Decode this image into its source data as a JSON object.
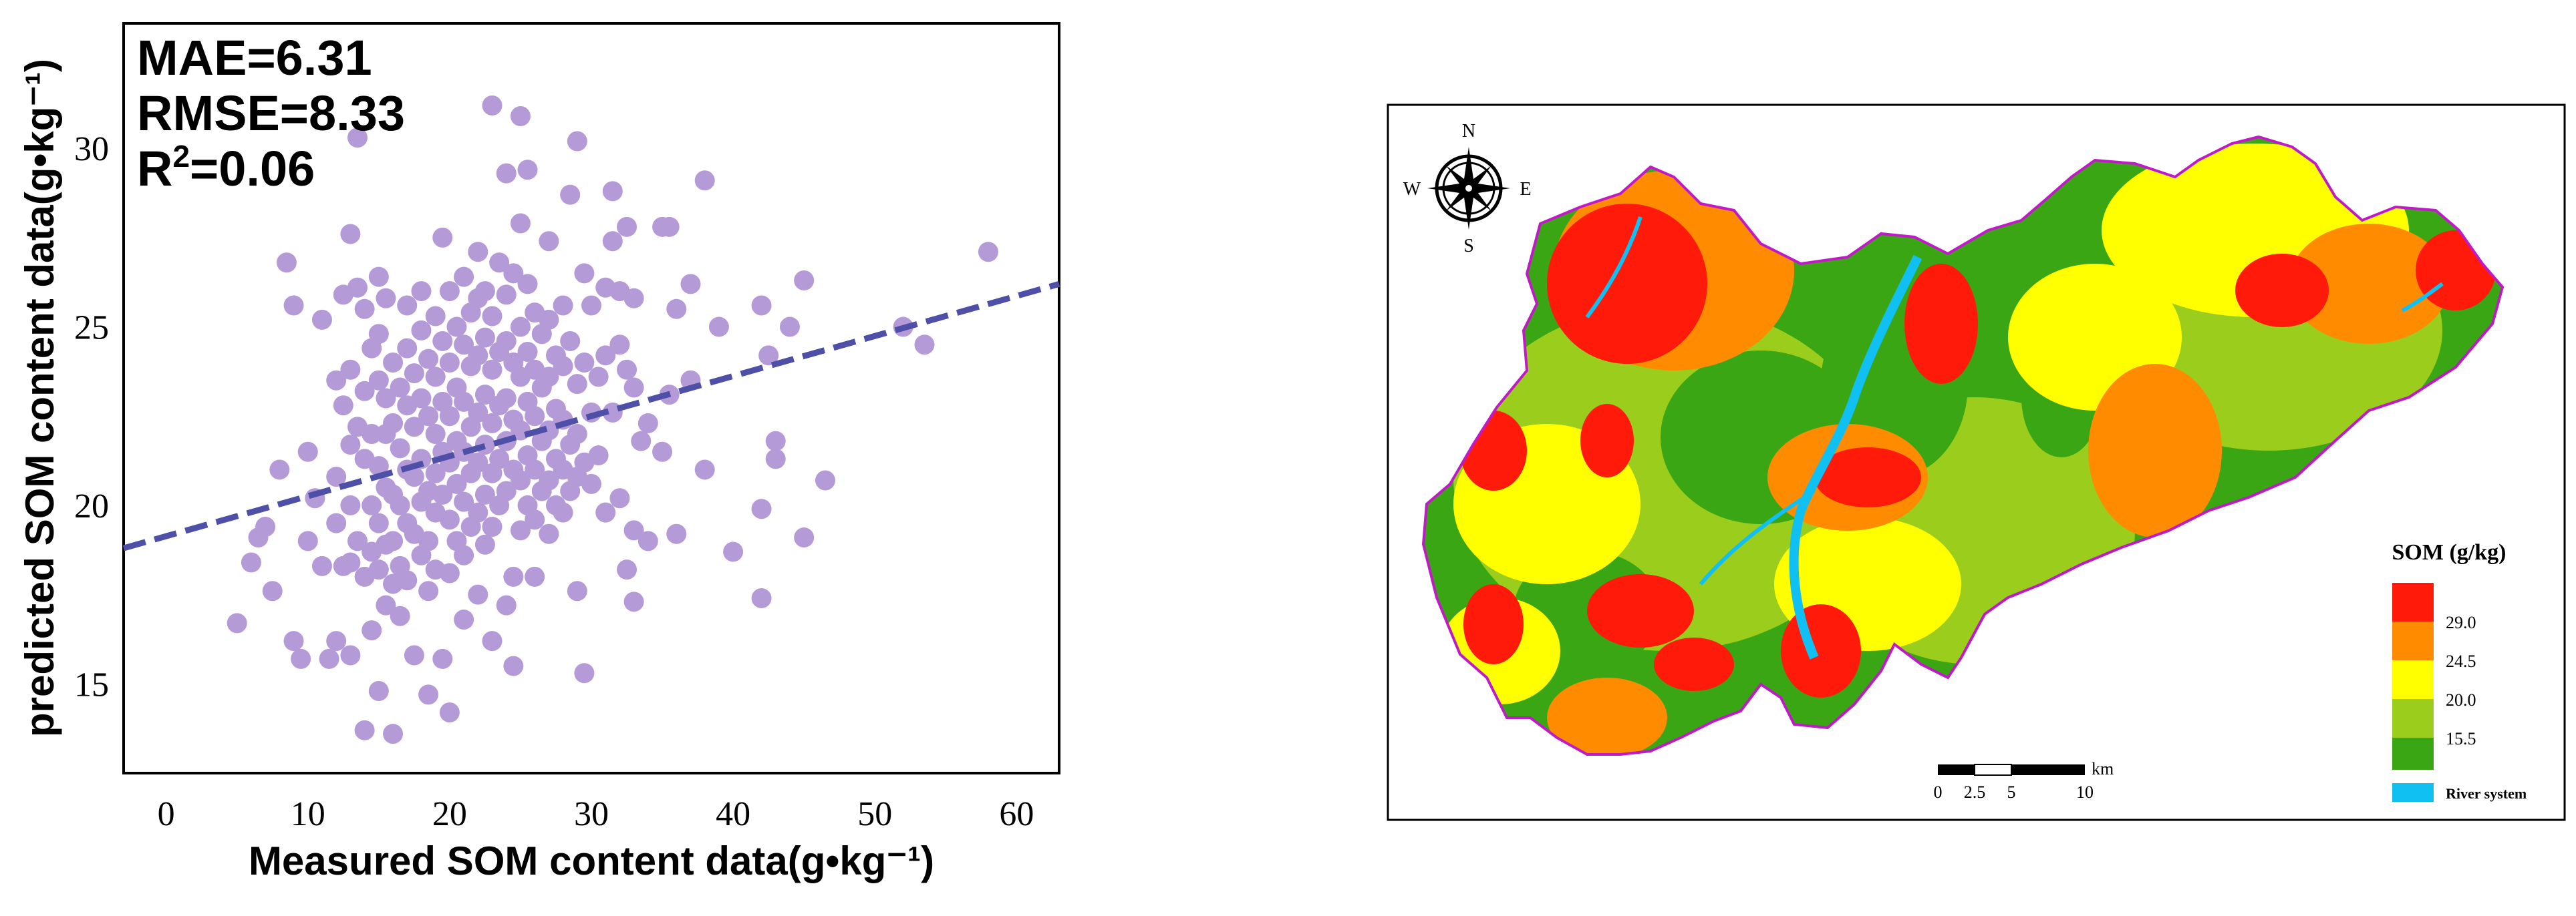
{
  "colors": {
    "point": "#b59ad8",
    "trend": "#4e4fa6",
    "som_29": "#ff1a0a",
    "som_24_5": "#ff8c00",
    "som_20": "#ffff00",
    "som_15_5": "#9acd1c",
    "som_low": "#3aa613",
    "river": "#11c0f2",
    "boundary": "#c01ac8"
  },
  "chart_data": {
    "type": "scatter",
    "title": "",
    "xlabel": "Measured SOM content data(g•kg⁻¹)",
    "ylabel": "predicted SOM content data(g•kg⁻¹)",
    "xlim": [
      -3,
      63
    ],
    "ylim": [
      12.5,
      33.5
    ],
    "xticks": [
      0,
      10,
      20,
      30,
      40,
      50,
      60
    ],
    "yticks": [
      15,
      20,
      25,
      30
    ],
    "metrics": {
      "mae": "MAE=6.31",
      "rmse": "RMSE=8.33",
      "r2_base": "R",
      "r2_sup": "2",
      "r2_value": "=0.06"
    },
    "trend_line": {
      "x": [
        -3,
        63
      ],
      "y": [
        18.8,
        26.2
      ],
      "style": "dashed"
    },
    "points": [
      [
        5,
        16.7
      ],
      [
        6,
        18.4
      ],
      [
        6.5,
        19.1
      ],
      [
        7,
        19.4
      ],
      [
        7.5,
        17.6
      ],
      [
        8,
        21.0
      ],
      [
        8.5,
        26.8
      ],
      [
        9,
        25.6
      ],
      [
        9,
        16.2
      ],
      [
        9.5,
        15.7
      ],
      [
        10,
        21.5
      ],
      [
        10,
        19.0
      ],
      [
        10.5,
        20.2
      ],
      [
        11,
        25.2
      ],
      [
        11,
        18.3
      ],
      [
        11.5,
        15.7
      ],
      [
        12,
        23.5
      ],
      [
        12,
        20.8
      ],
      [
        12,
        19.5
      ],
      [
        12,
        16.2
      ],
      [
        12.5,
        25.9
      ],
      [
        12.5,
        22.8
      ],
      [
        12.5,
        18.3
      ],
      [
        13,
        27.6
      ],
      [
        13,
        23.8
      ],
      [
        13,
        21.7
      ],
      [
        13,
        20.0
      ],
      [
        13,
        18.4
      ],
      [
        13,
        15.8
      ],
      [
        13.5,
        30.3
      ],
      [
        13.5,
        26.1
      ],
      [
        13.5,
        22.2
      ],
      [
        13.5,
        19.0
      ],
      [
        14,
        25.5
      ],
      [
        14,
        23.2
      ],
      [
        14,
        21.3
      ],
      [
        14,
        18.0
      ],
      [
        14,
        13.7
      ],
      [
        14.5,
        24.4
      ],
      [
        14.5,
        22.0
      ],
      [
        14.5,
        20.0
      ],
      [
        14.5,
        18.7
      ],
      [
        14.5,
        16.5
      ],
      [
        15,
        26.4
      ],
      [
        15,
        24.8
      ],
      [
        15,
        23.5
      ],
      [
        15,
        21.1
      ],
      [
        15,
        19.5
      ],
      [
        15,
        18.2
      ],
      [
        15,
        14.8
      ],
      [
        15.5,
        25.8
      ],
      [
        15.5,
        23.0
      ],
      [
        15.5,
        22.0
      ],
      [
        15.5,
        20.5
      ],
      [
        15.5,
        18.9
      ],
      [
        15.5,
        17.2
      ],
      [
        16,
        24.0
      ],
      [
        16,
        22.3
      ],
      [
        16,
        20.3
      ],
      [
        16,
        19.0
      ],
      [
        16,
        17.8
      ],
      [
        16,
        13.6
      ],
      [
        16.5,
        23.3
      ],
      [
        16.5,
        21.6
      ],
      [
        16.5,
        20.0
      ],
      [
        16.5,
        18.3
      ],
      [
        16.5,
        16.9
      ],
      [
        17,
        25.6
      ],
      [
        17,
        24.4
      ],
      [
        17,
        22.8
      ],
      [
        17,
        21.0
      ],
      [
        17,
        19.5
      ],
      [
        17,
        17.9
      ],
      [
        17.5,
        23.7
      ],
      [
        17.5,
        22.2
      ],
      [
        17.5,
        20.8
      ],
      [
        17.5,
        19.2
      ],
      [
        17.5,
        15.8
      ],
      [
        18,
        26.0
      ],
      [
        18,
        24.9
      ],
      [
        18,
        23.0
      ],
      [
        18,
        21.3
      ],
      [
        18,
        20.1
      ],
      [
        18,
        18.6
      ],
      [
        18.5,
        24.1
      ],
      [
        18.5,
        22.5
      ],
      [
        18.5,
        20.4
      ],
      [
        18.5,
        19.0
      ],
      [
        18.5,
        17.6
      ],
      [
        18.5,
        14.7
      ],
      [
        19,
        25.3
      ],
      [
        19,
        23.6
      ],
      [
        19,
        22.0
      ],
      [
        19,
        20.9
      ],
      [
        19,
        19.8
      ],
      [
        19,
        18.2
      ],
      [
        19.5,
        27.5
      ],
      [
        19.5,
        24.6
      ],
      [
        19.5,
        22.9
      ],
      [
        19.5,
        21.5
      ],
      [
        19.5,
        20.3
      ],
      [
        19.5,
        15.7
      ],
      [
        20,
        26.0
      ],
      [
        20,
        24.0
      ],
      [
        20,
        22.5
      ],
      [
        20,
        21.2
      ],
      [
        20,
        19.6
      ],
      [
        20,
        18.1
      ],
      [
        20,
        14.2
      ],
      [
        20.5,
        25.0
      ],
      [
        20.5,
        23.3
      ],
      [
        20.5,
        21.8
      ],
      [
        20.5,
        20.6
      ],
      [
        20.5,
        19.0
      ],
      [
        21,
        26.4
      ],
      [
        21,
        24.5
      ],
      [
        21,
        22.9
      ],
      [
        21,
        21.5
      ],
      [
        21,
        20.1
      ],
      [
        21,
        18.6
      ],
      [
        21,
        16.8
      ],
      [
        21.5,
        25.4
      ],
      [
        21.5,
        23.9
      ],
      [
        21.5,
        22.2
      ],
      [
        21.5,
        20.9
      ],
      [
        21.5,
        19.4
      ],
      [
        22,
        27.1
      ],
      [
        22,
        25.8
      ],
      [
        22,
        24.2
      ],
      [
        22,
        22.6
      ],
      [
        22,
        21.2
      ],
      [
        22,
        19.8
      ],
      [
        22,
        17.5
      ],
      [
        22.5,
        26.0
      ],
      [
        22.5,
        24.7
      ],
      [
        22.5,
        23.1
      ],
      [
        22.5,
        21.7
      ],
      [
        22.5,
        20.3
      ],
      [
        22.5,
        18.9
      ],
      [
        23,
        31.2
      ],
      [
        23,
        25.3
      ],
      [
        23,
        23.8
      ],
      [
        23,
        22.3
      ],
      [
        23,
        20.9
      ],
      [
        23,
        19.4
      ],
      [
        23,
        16.2
      ],
      [
        23.5,
        26.8
      ],
      [
        23.5,
        24.3
      ],
      [
        23.5,
        22.8
      ],
      [
        23.5,
        21.3
      ],
      [
        23.5,
        20.0
      ],
      [
        24,
        29.3
      ],
      [
        24,
        25.9
      ],
      [
        24,
        24.6
      ],
      [
        24,
        23.0
      ],
      [
        24,
        21.8
      ],
      [
        24,
        20.4
      ],
      [
        24,
        17.2
      ],
      [
        24.5,
        26.5
      ],
      [
        24.5,
        24.0
      ],
      [
        24.5,
        22.4
      ],
      [
        24.5,
        21.0
      ],
      [
        24.5,
        18.0
      ],
      [
        24.5,
        15.5
      ],
      [
        25,
        30.9
      ],
      [
        25,
        27.9
      ],
      [
        25,
        25.0
      ],
      [
        25,
        23.6
      ],
      [
        25,
        22.1
      ],
      [
        25,
        20.7
      ],
      [
        25,
        19.3
      ],
      [
        25.5,
        29.4
      ],
      [
        25.5,
        26.2
      ],
      [
        25.5,
        24.3
      ],
      [
        25.5,
        22.9
      ],
      [
        25.5,
        21.4
      ],
      [
        25.5,
        20.0
      ],
      [
        26,
        25.4
      ],
      [
        26,
        23.8
      ],
      [
        26,
        22.5
      ],
      [
        26,
        21.0
      ],
      [
        26,
        19.6
      ],
      [
        26,
        18.0
      ],
      [
        26.5,
        24.8
      ],
      [
        26.5,
        23.3
      ],
      [
        26.5,
        21.8
      ],
      [
        26.5,
        20.4
      ],
      [
        27,
        27.4
      ],
      [
        27,
        25.2
      ],
      [
        27,
        23.6
      ],
      [
        27,
        22.1
      ],
      [
        27,
        20.7
      ],
      [
        27,
        19.2
      ],
      [
        27.5,
        24.2
      ],
      [
        27.5,
        22.7
      ],
      [
        27.5,
        21.3
      ],
      [
        27.5,
        20.0
      ],
      [
        28,
        25.6
      ],
      [
        28,
        23.9
      ],
      [
        28,
        22.4
      ],
      [
        28,
        21.0
      ],
      [
        28,
        19.8
      ],
      [
        28.5,
        28.7
      ],
      [
        28.5,
        24.6
      ],
      [
        28.5,
        21.7
      ],
      [
        28.5,
        20.4
      ],
      [
        29,
        30.2
      ],
      [
        29,
        23.4
      ],
      [
        29,
        22.0
      ],
      [
        29,
        20.8
      ],
      [
        29,
        17.6
      ],
      [
        29.5,
        26.5
      ],
      [
        29.5,
        24.0
      ],
      [
        29.5,
        21.2
      ],
      [
        29.5,
        15.3
      ],
      [
        30,
        25.6
      ],
      [
        30,
        22.6
      ],
      [
        30,
        20.6
      ],
      [
        30.5,
        23.6
      ],
      [
        30.5,
        21.4
      ],
      [
        31,
        26.1
      ],
      [
        31,
        24.2
      ],
      [
        31,
        19.8
      ],
      [
        31.5,
        28.8
      ],
      [
        31.5,
        27.4
      ],
      [
        31.5,
        22.6
      ],
      [
        32,
        26.0
      ],
      [
        32,
        24.5
      ],
      [
        32,
        20.2
      ],
      [
        32.5,
        27.8
      ],
      [
        32.5,
        23.8
      ],
      [
        32.5,
        18.2
      ],
      [
        33,
        25.8
      ],
      [
        33,
        23.3
      ],
      [
        33,
        19.3
      ],
      [
        33,
        17.3
      ],
      [
        33.5,
        21.8
      ],
      [
        34,
        22.3
      ],
      [
        34,
        19.0
      ],
      [
        35,
        27.8
      ],
      [
        35,
        21.5
      ],
      [
        35.5,
        27.8
      ],
      [
        35.5,
        23.1
      ],
      [
        36,
        25.5
      ],
      [
        36,
        19.2
      ],
      [
        37,
        26.2
      ],
      [
        37,
        23.5
      ],
      [
        38,
        29.1
      ],
      [
        38,
        21.0
      ],
      [
        39,
        25.0
      ],
      [
        40,
        18.7
      ],
      [
        42,
        25.6
      ],
      [
        42,
        19.9
      ],
      [
        42,
        17.4
      ],
      [
        42.5,
        24.2
      ],
      [
        43,
        21.8
      ],
      [
        43,
        21.3
      ],
      [
        44,
        25.0
      ],
      [
        45,
        26.3
      ],
      [
        45,
        19.1
      ],
      [
        46.5,
        20.7
      ],
      [
        52,
        25.0
      ],
      [
        53.5,
        24.5
      ],
      [
        58,
        27.1
      ]
    ]
  },
  "map": {
    "compass": {
      "n": "N",
      "s": "S",
      "e": "E",
      "w": "W"
    },
    "legend": {
      "title": "SOM (g/kg)",
      "labels": [
        "29.0",
        "24.5",
        "20.0",
        "15.5"
      ],
      "river_label": "River system"
    },
    "scale_bar": {
      "ticks": [
        "0",
        "2.5",
        "5",
        "10"
      ],
      "unit": "km"
    }
  }
}
